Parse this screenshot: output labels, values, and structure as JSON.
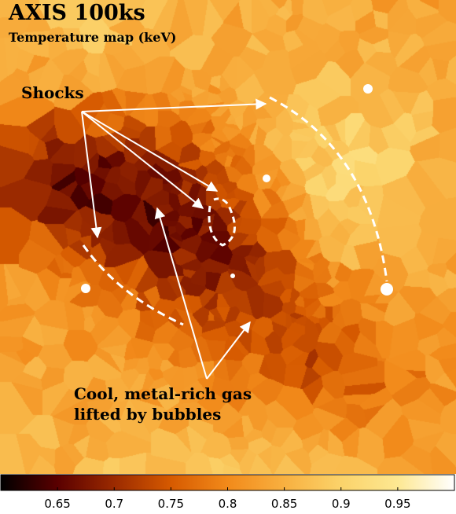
{
  "figure": {
    "title": "AXIS 100ks",
    "subtitle": "Temperature map (keV)",
    "annotations": {
      "shocks": "Shocks",
      "cool_line1": "Cool, metal-rich gas",
      "cool_line2": "lifted by bubbles"
    }
  },
  "colorbar": {
    "min": 0.6,
    "max": 1.0,
    "ticks": [
      "0.65",
      "0.7",
      "0.75",
      "0.8",
      "0.85",
      "0.9",
      "0.95"
    ],
    "tick_values": [
      0.65,
      0.7,
      0.75,
      0.8,
      0.85,
      0.9,
      0.95
    ],
    "colormap": [
      "#000000",
      "#5a0000",
      "#9b2a00",
      "#d65a00",
      "#f28a1a",
      "#f8b040",
      "#fbd36a",
      "#fde892",
      "#ffffff"
    ]
  },
  "colors": {
    "annotation": "#ffffff",
    "text": "#000000"
  }
}
